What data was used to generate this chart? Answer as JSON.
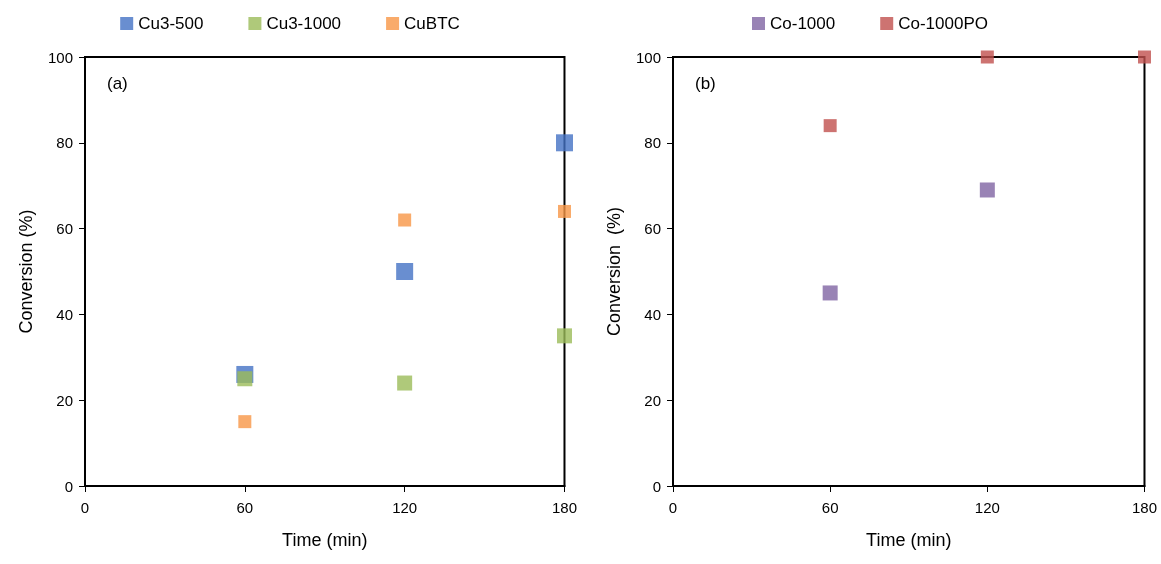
{
  "chart_data": [
    {
      "type": "scatter",
      "xlabel": "Time (min)",
      "ylabel": "Conversion (%)",
      "annotations": [
        "(a)"
      ],
      "x": [
        60,
        120,
        180
      ],
      "series": [
        {
          "name": "Cu3-500",
          "color": "#4472c4",
          "values": [
            26,
            50,
            80
          ]
        },
        {
          "name": "Cu3-1000",
          "color": "#9bbb59",
          "values": [
            25,
            24,
            35
          ]
        },
        {
          "name": "CuBTC",
          "color": "#f79646",
          "values": [
            15,
            62,
            64
          ]
        }
      ],
      "xlim": [
        0,
        180
      ],
      "xticks": [
        0,
        60,
        120,
        180
      ],
      "ylim": [
        0,
        100
      ],
      "yticks": [
        0,
        20,
        40,
        60,
        80,
        100
      ],
      "marker": "square",
      "legend": "top",
      "grid": false
    },
    {
      "type": "scatter",
      "xlabel": "Time (min)",
      "ylabel": "Conversion  (%)",
      "annotations": [
        "(b)"
      ],
      "series": [
        {
          "name": "Co-1000",
          "color": "#8064a2",
          "x": [
            60,
            120
          ],
          "values": [
            45,
            69
          ]
        },
        {
          "name": "Co-1000PO",
          "color": "#c0504d",
          "x": [
            60,
            120,
            180
          ],
          "values": [
            84,
            100,
            100
          ]
        }
      ],
      "xlim": [
        0,
        180
      ],
      "xticks": [
        0,
        60,
        120,
        180
      ],
      "ylim": [
        0,
        100
      ],
      "yticks": [
        0,
        20,
        40,
        60,
        80,
        100
      ],
      "marker": "square",
      "legend": "top",
      "grid": false
    }
  ]
}
